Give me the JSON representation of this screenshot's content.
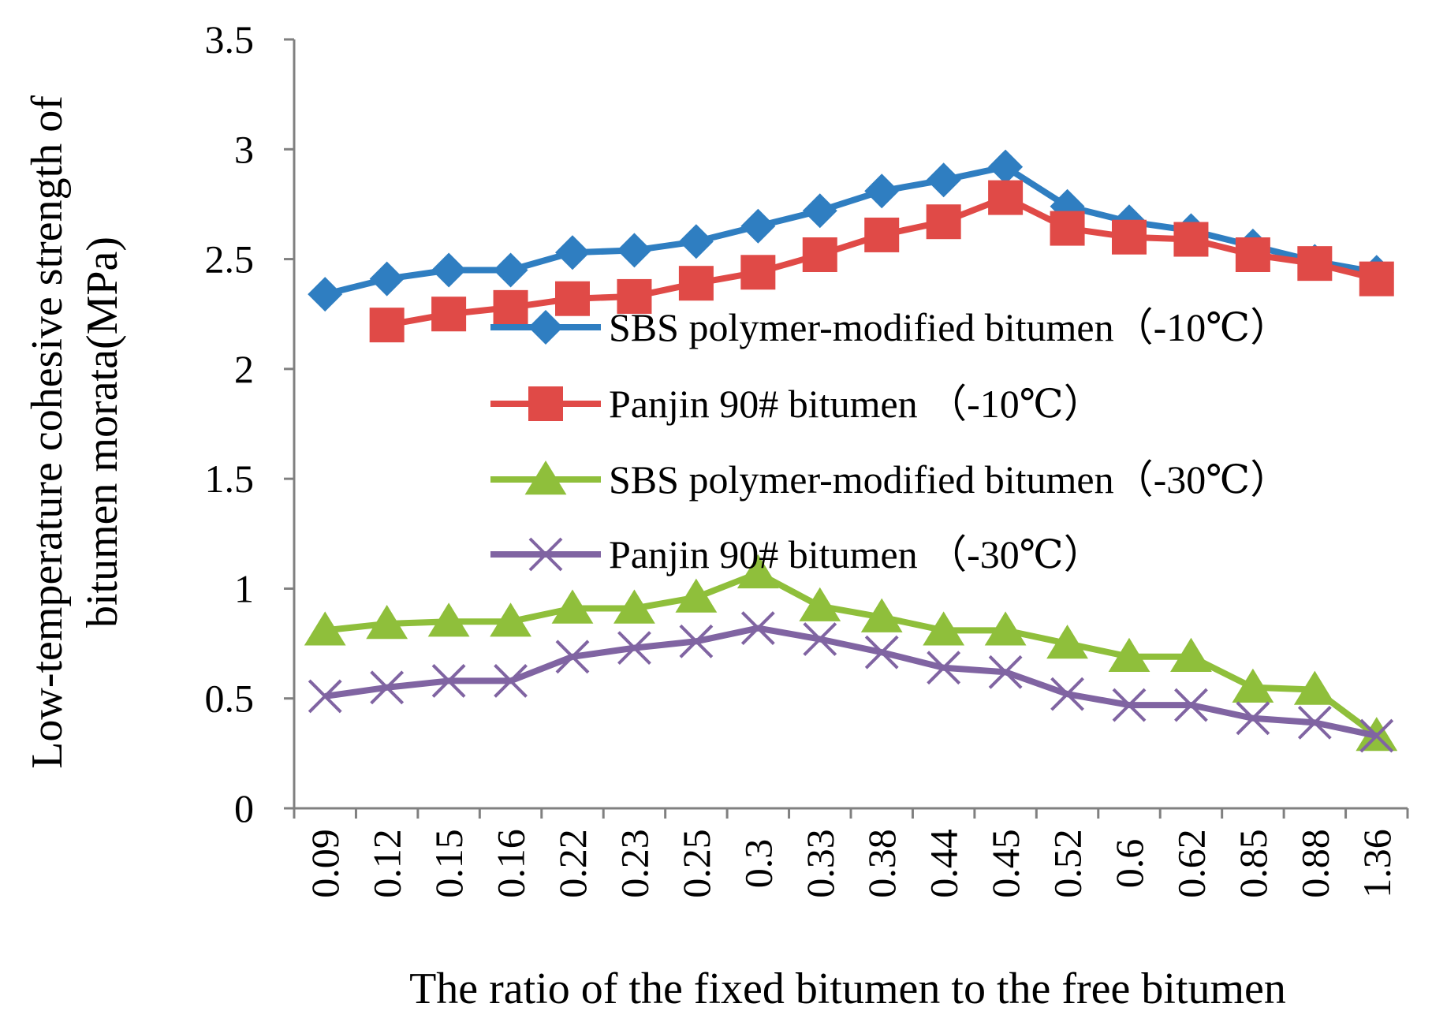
{
  "chart_data": {
    "type": "line",
    "title": "",
    "xlabel": "The ratio of the fixed bitumen to the free bitumen",
    "ylabel_line1": "Low-temperature cohesive strength of",
    "ylabel_line2": "bitumen morata(MPa)",
    "ylim": [
      0,
      3.5
    ],
    "y_ticks": [
      "0",
      "0.5",
      "1",
      "1.5",
      "2",
      "2.5",
      "3",
      "3.5"
    ],
    "y_tick_values": [
      0,
      0.5,
      1,
      1.5,
      2,
      2.5,
      3,
      3.5
    ],
    "grid": false,
    "legend_position": "center",
    "categories": [
      "0.09",
      "0.12",
      "0.15",
      "0.16",
      "0.22",
      "0.23",
      "0.25",
      "0.3",
      "0.33",
      "0.38",
      "0.44",
      "0.45",
      "0.52",
      "0.6",
      "0.62",
      "0.85",
      "0.88",
      "1.36"
    ],
    "series": [
      {
        "name": "SBS polymer-modified bitumen（-10℃）",
        "color": "#2f7ec1",
        "marker": "diamond",
        "values": [
          2.34,
          2.41,
          2.45,
          2.45,
          2.53,
          2.54,
          2.58,
          2.65,
          2.72,
          2.81,
          2.86,
          2.92,
          2.74,
          2.67,
          2.63,
          2.56,
          2.49,
          2.44
        ]
      },
      {
        "name": "Panjin 90# bitumen （-10℃）",
        "color": "#e04a47",
        "marker": "square",
        "values": [
          null,
          2.2,
          2.25,
          2.28,
          2.32,
          2.33,
          2.39,
          2.44,
          2.52,
          2.61,
          2.67,
          2.78,
          2.64,
          2.6,
          2.59,
          2.52,
          2.48,
          2.41
        ]
      },
      {
        "name": "SBS polymer-modified bitumen（-30℃）",
        "color": "#8fbf3b",
        "marker": "triangle",
        "values": [
          0.81,
          0.84,
          0.85,
          0.85,
          0.91,
          0.91,
          0.96,
          1.07,
          0.92,
          0.87,
          0.81,
          0.81,
          0.75,
          0.69,
          0.69,
          0.55,
          0.54,
          0.33
        ]
      },
      {
        "name": "Panjin 90# bitumen （-30℃）",
        "color": "#8064a2",
        "marker": "x",
        "values": [
          0.51,
          0.55,
          0.58,
          0.58,
          0.69,
          0.73,
          0.76,
          0.82,
          0.77,
          0.71,
          0.64,
          0.62,
          0.52,
          0.47,
          0.47,
          0.41,
          0.39,
          0.33
        ]
      }
    ]
  }
}
